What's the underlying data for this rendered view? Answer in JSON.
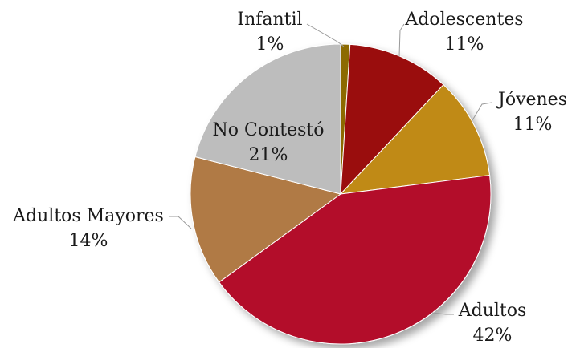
{
  "chart_data": {
    "type": "pie",
    "categories": [
      "Infantil",
      "Adolescentes",
      "Jóvenes",
      "Adultos",
      "Adultos Mayores",
      "No Contestó"
    ],
    "values": [
      1,
      11,
      11,
      42,
      14,
      21
    ],
    "value_labels": [
      "1%",
      "11%",
      "11%",
      "42%",
      "14%",
      "21%"
    ],
    "colors": [
      "#8c6a00",
      "#9a0b0b",
      "#c08a12",
      "#b3082b",
      "#b07a44",
      "#bdbdbd"
    ]
  }
}
